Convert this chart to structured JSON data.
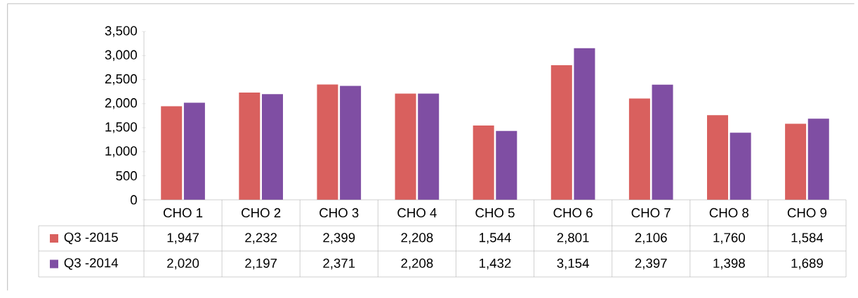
{
  "chart_data": {
    "type": "bar",
    "categories": [
      "CHO 1",
      "CHO 2",
      "CHO 3",
      "CHO 4",
      "CHO 5",
      "CHO 6",
      "CHO 7",
      "CHO 8",
      "CHO 9"
    ],
    "series": [
      {
        "name": "Q3 -2015",
        "color": "#d9605e",
        "values": [
          1947,
          2232,
          2399,
          2208,
          1544,
          2801,
          2106,
          1760,
          1584
        ],
        "value_labels": [
          "1,947",
          "2,232",
          "2,399",
          "2,208",
          "1,544",
          "2,801",
          "2,106",
          "1,760",
          "1,584"
        ]
      },
      {
        "name": "Q3 -2014",
        "color": "#7f4ea3",
        "values": [
          2020,
          2197,
          2371,
          2208,
          1432,
          3154,
          2397,
          1398,
          1689
        ],
        "value_labels": [
          "2,020",
          "2,197",
          "2,371",
          "2,208",
          "1,432",
          "3,154",
          "2,397",
          "1,398",
          "1,689"
        ]
      }
    ],
    "legend": "bottom left",
    "ylim": [
      0,
      3500
    ],
    "yticks": [
      {
        "value": 0,
        "label": "0"
      },
      {
        "value": 500,
        "label": "500"
      },
      {
        "value": 1000,
        "label": "1,000"
      },
      {
        "value": 1500,
        "label": "1,500"
      },
      {
        "value": 2000,
        "label": "2,000"
      },
      {
        "value": 2500,
        "label": "2,500"
      },
      {
        "value": 3000,
        "label": "3,000"
      },
      {
        "value": 3500,
        "label": "3,500"
      }
    ]
  }
}
